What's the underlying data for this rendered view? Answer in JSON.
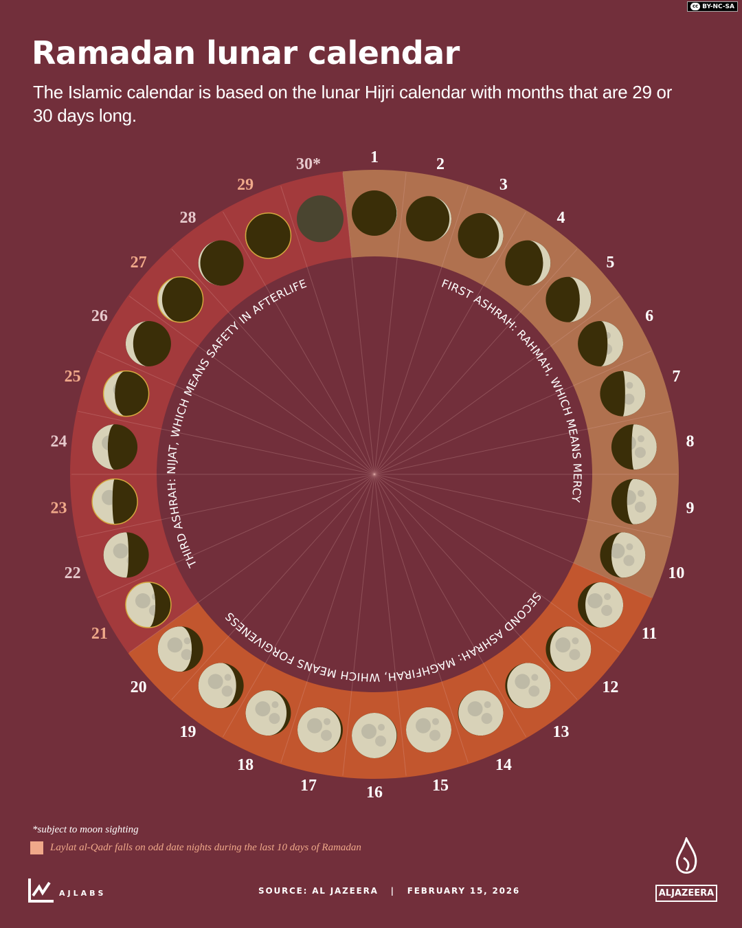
{
  "license": "BY-NC-SA",
  "title": "Ramadan lunar calendar",
  "subtitle": "The Islamic calendar is based on the lunar Hijri calendar with months that are 29 or 30 days long.",
  "colors": {
    "background": "#722f3b",
    "first_ashrah": "#b0714f",
    "second_ashrah": "#c2562e",
    "third_ashrah": "#a33a3c",
    "laylat_al_qadr": "#f0a98a",
    "moon_dark": "#3a2e08",
    "moon_lit": "#d8d2b8"
  },
  "days": [
    "1",
    "2",
    "3",
    "4",
    "5",
    "6",
    "7",
    "8",
    "9",
    "10",
    "11",
    "12",
    "13",
    "14",
    "15",
    "16",
    "17",
    "18",
    "19",
    "20",
    "21",
    "22",
    "23",
    "24",
    "25",
    "26",
    "27",
    "28",
    "29",
    "30*"
  ],
  "ashrahs": [
    {
      "label": "FIRST ASHRAH: RAHMAH, WHICH MEANS MERCY"
    },
    {
      "label": "SECOND ASHRAH: MAGHFIRAH, WHICH MEANS FORGIVENESS"
    },
    {
      "label": "THIRD ASHRAH: NIJAT, WHICH MEANS SAFETY IN AFTERLIFE"
    }
  ],
  "footnote": "*subject to moon sighting",
  "legend": "Laylat al-Qadr falls on odd date nights during the last 10 days of Ramadan",
  "source": "SOURCE: AL JAZEERA   |   FEBRUARY 15, 2026",
  "brand_left": "AJLABS",
  "brand_right": "ALJAZEERA"
}
